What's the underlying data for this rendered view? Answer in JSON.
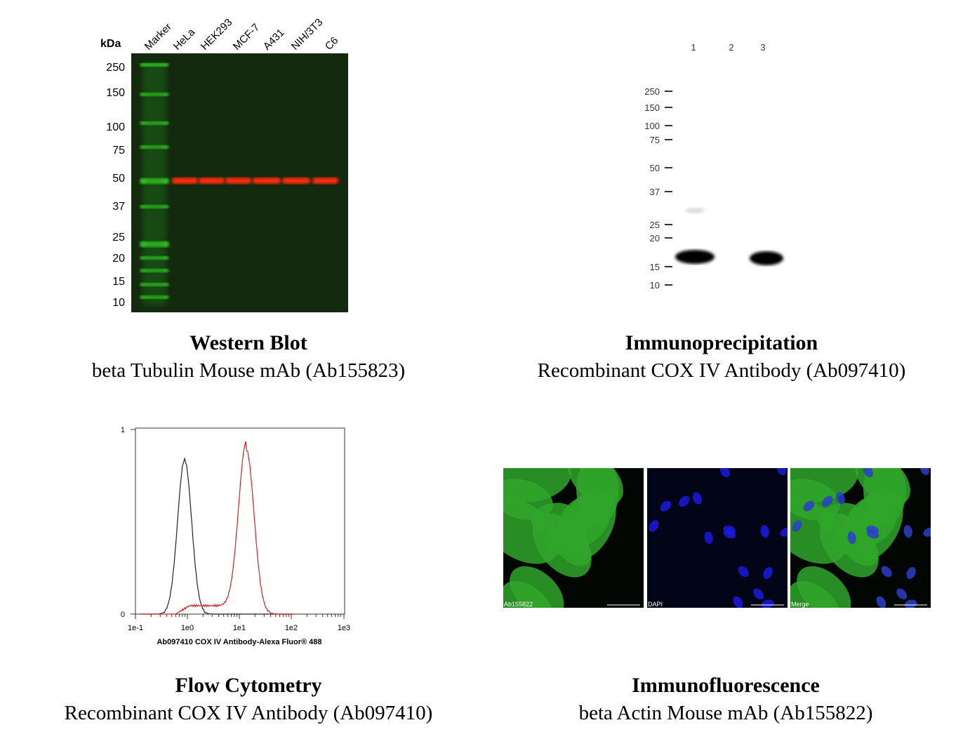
{
  "panels": [
    {
      "title": "Western Blot",
      "subtitle": "beta Tubulin Mouse mAb (Ab155823)",
      "unit_label": "kDa",
      "lanes": [
        "Marker",
        "HeLa",
        "HEK293",
        "MCF-7",
        "A431",
        "NIH/3T3",
        "C6"
      ],
      "markers": [
        "250",
        "150",
        "100",
        "75",
        "50",
        "37",
        "25",
        "20",
        "15",
        "10"
      ]
    },
    {
      "title": "Immunoprecipitation",
      "subtitle": "Recombinant COX IV Antibody (Ab097410)",
      "lanes": [
        "1",
        "2",
        "3"
      ],
      "markers": [
        "250",
        "150",
        "100",
        "75",
        "50",
        "37",
        "25",
        "20",
        "15",
        "10"
      ]
    },
    {
      "title": "Flow Cytometry",
      "subtitle": "Recombinant COX IV Antibody (Ab097410)",
      "x_label": "Ab097410 COX IV Antibody-Alexa Fluor® 488",
      "x_ticks": [
        "1e-1",
        "1e0",
        "1e1",
        "1e2",
        "1e3"
      ],
      "y_ticks": [
        "1",
        "0"
      ]
    },
    {
      "title": "Immunofluorescence",
      "subtitle": "beta Actin Mouse mAb (Ab155822)",
      "images": [
        "Ab155822",
        "DAPI",
        "Merge"
      ]
    }
  ]
}
